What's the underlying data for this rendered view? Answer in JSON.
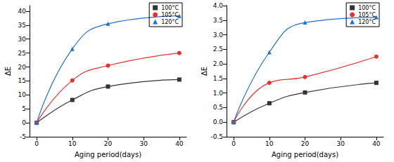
{
  "chart_data": [
    {
      "type": "line",
      "x_label": "Aging period(days)",
      "y_label": "ΔE",
      "x": [
        0,
        10,
        20,
        40
      ],
      "xlim": [
        -2,
        42
      ],
      "xticks": [
        0,
        10,
        20,
        30,
        40
      ],
      "ylim": [
        -5,
        42
      ],
      "yticks": [
        -5,
        0,
        5,
        10,
        15,
        20,
        25,
        30,
        35,
        40
      ],
      "grid": false,
      "legend": "top-right",
      "series": [
        {
          "name": "100°C",
          "color": "#333333",
          "marker": "square",
          "line_style": "solid",
          "values": [
            0,
            8.2,
            13,
            15.5
          ]
        },
        {
          "name": "105°C",
          "color": "#e8312f",
          "marker": "circle",
          "line_style": "solid",
          "values": [
            0,
            15.2,
            20.5,
            25
          ]
        },
        {
          "name": "120°C",
          "color": "#1f6fd6",
          "marker": "triangle",
          "line_style": "solid",
          "values": [
            0,
            26.5,
            35.5,
            38.3
          ]
        }
      ]
    },
    {
      "type": "line",
      "x_label": "Aging period(days)",
      "y_label": "ΔE",
      "x": [
        0,
        10,
        20,
        40
      ],
      "xlim": [
        -2,
        42
      ],
      "xticks": [
        0,
        10,
        20,
        30,
        40
      ],
      "ylim": [
        -0.5,
        4.0
      ],
      "yticks": [
        -0.5,
        {
          "value": 0,
          "label": "0.0"
        },
        0.5,
        {
          "value": 1,
          "label": "1.0"
        },
        1.5,
        {
          "value": 2,
          "label": "2.0"
        },
        2.5,
        {
          "value": 3,
          "label": "3.0"
        },
        3.5,
        {
          "value": 4,
          "label": "4.0"
        }
      ],
      "grid": false,
      "legend": "top-right",
      "series": [
        {
          "name": "100°C",
          "color": "#333333",
          "marker": "square",
          "line_style": "solid",
          "values": [
            0,
            0.65,
            1.02,
            1.35
          ]
        },
        {
          "name": "105°C",
          "color": "#e8312f",
          "marker": "circle",
          "line_style": "solid",
          "values": [
            0,
            1.35,
            1.55,
            2.25
          ]
        },
        {
          "name": "120°C",
          "color": "#1f6fd6",
          "marker": "triangle",
          "line_style": "solid",
          "values": [
            0,
            2.4,
            3.42,
            3.6
          ]
        }
      ]
    }
  ]
}
